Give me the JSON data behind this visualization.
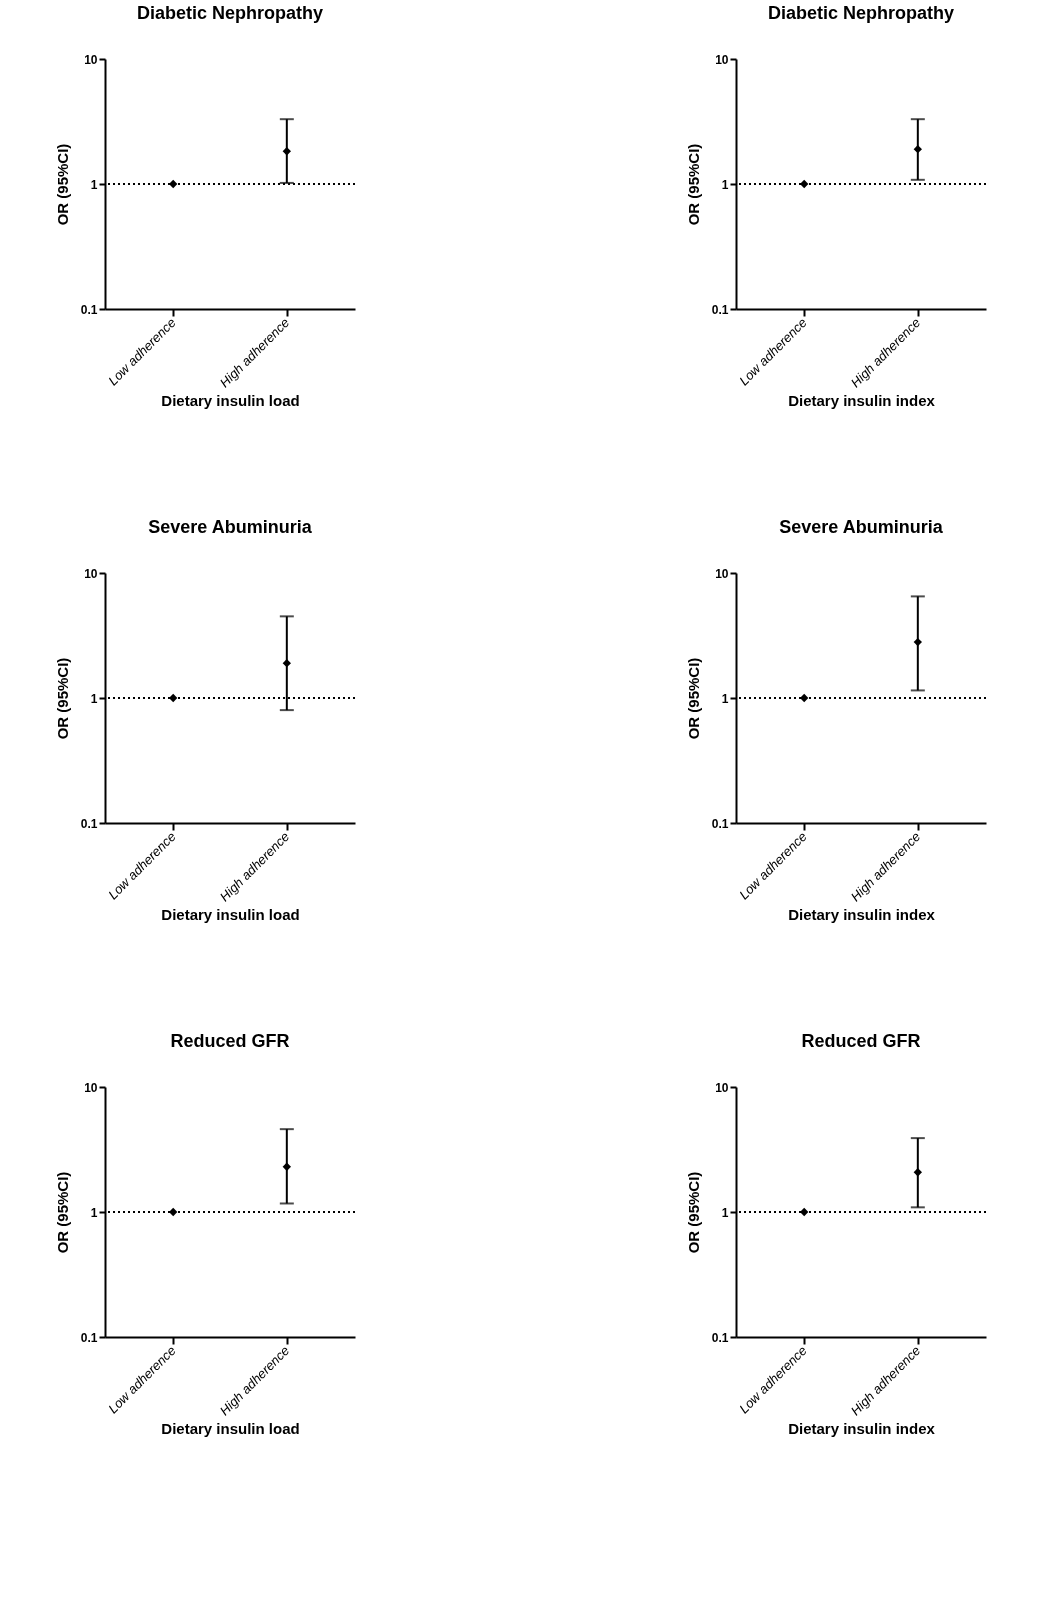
{
  "chart_data": [
    {
      "type": "scatter",
      "title": "Diabetic Nephropathy",
      "xlabel": "Dietary insulin load",
      "ylabel": "OR (95%CI)",
      "categories": [
        "Low adherence",
        "High adherence"
      ],
      "values": [
        1,
        1.83
      ],
      "errors": [
        null,
        [
          1.02,
          3.3
        ]
      ],
      "color": "#000000",
      "marker": "diamond",
      "log": true,
      "ylim": [
        0.1,
        10
      ],
      "yticks": [
        0.1,
        1,
        10
      ],
      "ref_lines": [
        {
          "axis": "y",
          "value": 1,
          "line_style": "dotted"
        }
      ],
      "grid": false
    },
    {
      "type": "scatter",
      "title": "Diabetic Nephropathy",
      "xlabel": "Dietary insulin index",
      "ylabel": "OR (95%CI)",
      "categories": [
        "Low adherence",
        "High adherence"
      ],
      "values": [
        1,
        1.9
      ],
      "errors": [
        null,
        [
          1.08,
          3.3
        ]
      ],
      "color": "#000000",
      "marker": "diamond",
      "log": true,
      "ylim": [
        0.1,
        10
      ],
      "yticks": [
        0.1,
        1,
        10
      ],
      "ref_lines": [
        {
          "axis": "y",
          "value": 1,
          "line_style": "dotted"
        }
      ],
      "grid": false
    },
    {
      "type": "scatter",
      "title": "Severe Abuminuria",
      "xlabel": "Dietary insulin load",
      "ylabel": "OR (95%CI)",
      "categories": [
        "Low adherence",
        "High adherence"
      ],
      "values": [
        1,
        1.9
      ],
      "errors": [
        null,
        [
          0.8,
          4.5
        ]
      ],
      "color": "#000000",
      "marker": "diamond",
      "log": true,
      "ylim": [
        0.1,
        10
      ],
      "yticks": [
        0.1,
        1,
        10
      ],
      "ref_lines": [
        {
          "axis": "y",
          "value": 1,
          "line_style": "dotted"
        }
      ],
      "grid": false
    },
    {
      "type": "scatter",
      "title": "Severe Abuminuria",
      "xlabel": "Dietary insulin index",
      "ylabel": "OR (95%CI)",
      "categories": [
        "Low adherence",
        "High adherence"
      ],
      "values": [
        1,
        2.8
      ],
      "errors": [
        null,
        [
          1.15,
          6.5
        ]
      ],
      "color": "#000000",
      "marker": "diamond",
      "log": true,
      "ylim": [
        0.1,
        10
      ],
      "yticks": [
        0.1,
        1,
        10
      ],
      "ref_lines": [
        {
          "axis": "y",
          "value": 1,
          "line_style": "dotted"
        }
      ],
      "grid": false
    },
    {
      "type": "scatter",
      "title": "Reduced GFR",
      "xlabel": "Dietary insulin load",
      "ylabel": "OR (95%CI)",
      "categories": [
        "Low adherence",
        "High adherence"
      ],
      "values": [
        1,
        2.3
      ],
      "errors": [
        null,
        [
          1.17,
          4.6
        ]
      ],
      "color": "#000000",
      "marker": "diamond",
      "log": true,
      "ylim": [
        0.1,
        10
      ],
      "yticks": [
        0.1,
        1,
        10
      ],
      "ref_lines": [
        {
          "axis": "y",
          "value": 1,
          "line_style": "dotted"
        }
      ],
      "grid": false
    },
    {
      "type": "scatter",
      "title": "Reduced GFR",
      "xlabel": "Dietary insulin index",
      "ylabel": "OR (95%CI)",
      "categories": [
        "Low adherence",
        "High adherence"
      ],
      "values": [
        1,
        2.08
      ],
      "errors": [
        null,
        [
          1.09,
          3.9
        ]
      ],
      "color": "#000000",
      "marker": "diamond",
      "log": true,
      "ylim": [
        0.1,
        10
      ],
      "yticks": [
        0.1,
        1,
        10
      ],
      "ref_lines": [
        {
          "axis": "y",
          "value": 1,
          "line_style": "dotted"
        }
      ],
      "grid": false
    }
  ]
}
